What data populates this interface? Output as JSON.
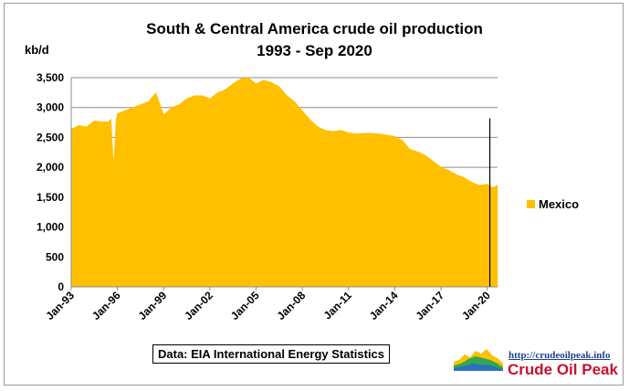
{
  "chart_data": {
    "type": "area",
    "title": "South & Central America crude oil production",
    "subtitle": "1993 - Sep 2020",
    "ylabel": "kb/d",
    "xlabel": "",
    "ylim": [
      0,
      3500
    ],
    "y_ticks": [
      "0",
      "500",
      "1,000",
      "1,500",
      "2,000",
      "2,500",
      "3,000",
      "3,500"
    ],
    "x_range": [
      "1993-01",
      "2020-09"
    ],
    "x_ticks": [
      "Jan-93",
      "Jan-96",
      "Jan-99",
      "Jan-02",
      "Jan-05",
      "Jan-08",
      "Jan-11",
      "Jan-14",
      "Jan-17",
      "Jan-20"
    ],
    "grid": true,
    "legend_position": "right",
    "series": [
      {
        "name": "Mexico",
        "color": "#ffc000",
        "x": [
          "1993-01",
          "1993-07",
          "1994-01",
          "1994-07",
          "1995-01",
          "1995-06",
          "1995-08",
          "1995-10",
          "1995-12",
          "1996-01",
          "1996-07",
          "1997-01",
          "1997-07",
          "1998-01",
          "1998-07",
          "1999-01",
          "1999-07",
          "2000-01",
          "2000-07",
          "2001-01",
          "2001-07",
          "2002-01",
          "2002-07",
          "2003-01",
          "2003-07",
          "2004-01",
          "2004-07",
          "2005-01",
          "2005-07",
          "2006-01",
          "2006-07",
          "2007-01",
          "2007-07",
          "2008-01",
          "2008-07",
          "2009-01",
          "2009-07",
          "2010-01",
          "2010-07",
          "2011-01",
          "2011-07",
          "2012-01",
          "2012-07",
          "2013-01",
          "2013-07",
          "2014-01",
          "2014-07",
          "2015-01",
          "2015-07",
          "2016-01",
          "2016-07",
          "2017-01",
          "2017-07",
          "2018-01",
          "2018-07",
          "2019-01",
          "2019-07",
          "2020-01",
          "2020-05",
          "2020-09"
        ],
        "values": [
          2640,
          2700,
          2680,
          2780,
          2760,
          2760,
          2810,
          2020,
          2800,
          2900,
          2950,
          3000,
          3050,
          3100,
          3250,
          2880,
          3000,
          3050,
          3150,
          3200,
          3200,
          3150,
          3250,
          3300,
          3400,
          3480,
          3500,
          3400,
          3460,
          3420,
          3350,
          3200,
          3100,
          2950,
          2800,
          2680,
          2620,
          2600,
          2620,
          2580,
          2560,
          2570,
          2570,
          2560,
          2540,
          2520,
          2450,
          2300,
          2260,
          2200,
          2100,
          2000,
          1950,
          1880,
          1830,
          1750,
          1700,
          1720,
          1660,
          1700
        ]
      }
    ],
    "annotations": [
      {
        "type": "vertical_line",
        "x": "2020-03",
        "y_top": 2820
      }
    ]
  },
  "source_note": "Data: EIA International Energy Statistics",
  "branding": {
    "url": "http://crudeoilpeak.info",
    "name": "Crude Oil Peak"
  }
}
